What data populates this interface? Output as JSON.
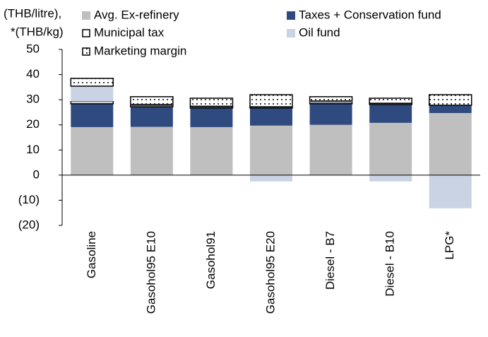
{
  "chart_data": {
    "type": "stacked_bar",
    "y_label": [
      "(THB/litre),",
      "*(THB/kg)"
    ],
    "categories": [
      "Gasoline",
      "Gasohol95 E10",
      "Gasohol91",
      "Gasohol95 E20",
      "Diesel - B7",
      "Diesel - B10",
      "LPG*"
    ],
    "series": [
      {
        "name": "Avg. Ex-refinery",
        "color": "#bfbfbf",
        "values": [
          19.1,
          19.2,
          19.1,
          19.7,
          20.0,
          20.8,
          24.7
        ]
      },
      {
        "name": "Taxes + Conservation fund",
        "color": "#2e4a7f",
        "values": [
          9.3,
          8.0,
          7.6,
          7.0,
          8.4,
          7.3,
          3.1
        ]
      },
      {
        "name": "Municipal tax",
        "color": "#ffffff",
        "values": [
          0.9,
          0.6,
          0.5,
          0.5,
          0.6,
          0.5,
          0
        ]
      },
      {
        "name": "Oil fund",
        "color": "#c9d3e3",
        "values": [
          6.1,
          0.3,
          0.2,
          -2.5,
          0.5,
          -2.5,
          -13.2
        ]
      },
      {
        "name": "Marketing margin",
        "color": "#ffffff",
        "pattern": "dots",
        "values": [
          3.1,
          3.1,
          3.2,
          4.8,
          1.7,
          2.0,
          4.2
        ]
      }
    ],
    "ylim": [
      -20,
      50
    ],
    "yticks": [
      {
        "value": -20,
        "label": "(20)"
      },
      {
        "value": -10,
        "label": "(10)"
      },
      0,
      10,
      20,
      30,
      40,
      50
    ],
    "grid": false
  }
}
